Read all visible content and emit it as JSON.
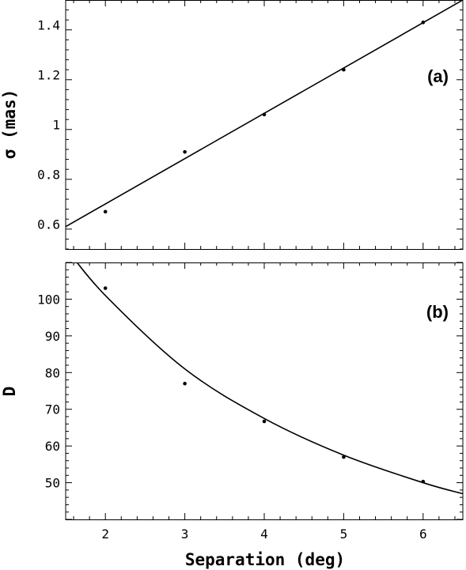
{
  "chart_data": [
    {
      "type": "scatter",
      "panel_label": "(a)",
      "ylabel": "σ (mas)",
      "xlabel": "",
      "xlim": [
        1.5,
        6.5
      ],
      "ylim": [
        0.5,
        1.5
      ],
      "xticks": [
        "2",
        "3",
        "4",
        "5",
        "6"
      ],
      "yticks": [
        {
          "value": 0.6,
          "label": "0.6"
        },
        {
          "value": 0.8,
          "label": "0.8"
        },
        {
          "value": 1.0,
          "label": "1"
        },
        {
          "value": 1.2,
          "label": "1.2"
        },
        {
          "value": 1.4,
          "label": "1.4"
        }
      ],
      "points": [
        {
          "x": 2,
          "y": 0.65
        },
        {
          "x": 3,
          "y": 0.89
        },
        {
          "x": 4,
          "y": 1.04
        },
        {
          "x": 5,
          "y": 1.22
        },
        {
          "x": 6,
          "y": 1.41
        }
      ],
      "fit": {
        "kind": "linear",
        "x": [
          1.5,
          6.5
        ],
        "y": [
          0.59,
          1.5
        ]
      },
      "grid": false
    },
    {
      "type": "scatter",
      "panel_label": "(b)",
      "ylabel": "D",
      "xlabel": "Separation (deg)",
      "xlim": [
        1.5,
        6.5
      ],
      "ylim": [
        40,
        110
      ],
      "xticks": [
        "2",
        "3",
        "4",
        "5",
        "6"
      ],
      "yticks": [
        {
          "value": 50,
          "label": "50"
        },
        {
          "value": 60,
          "label": "60"
        },
        {
          "value": 70,
          "label": "70"
        },
        {
          "value": 80,
          "label": "80"
        },
        {
          "value": 90,
          "label": "90"
        },
        {
          "value": 100,
          "label": "100"
        }
      ],
      "points": [
        {
          "x": 2,
          "y": 103
        },
        {
          "x": 3,
          "y": 77
        },
        {
          "x": 4,
          "y": 66.7
        },
        {
          "x": 5,
          "y": 57
        },
        {
          "x": 6,
          "y": 50.3
        }
      ],
      "fit": {
        "kind": "power",
        "x": [
          1.5,
          2,
          3,
          4,
          5,
          6,
          6.5
        ],
        "y": [
          114,
          101,
          81,
          67.5,
          57.5,
          50,
          47
        ]
      },
      "grid": false
    }
  ]
}
